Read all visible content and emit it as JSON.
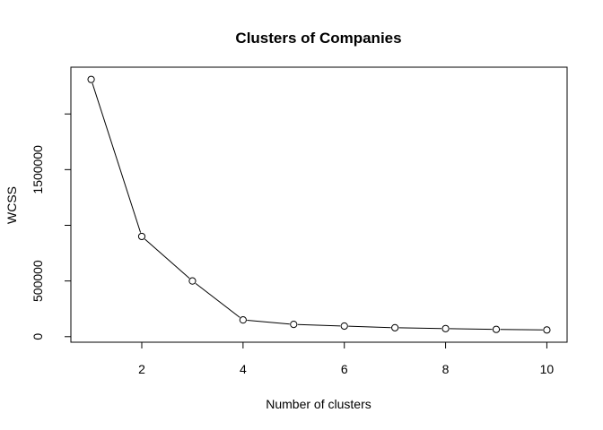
{
  "chart_data": {
    "type": "line",
    "title": "Clusters of Companies",
    "xlabel": "Number of clusters",
    "ylabel": "WCSS",
    "x": [
      1,
      2,
      3,
      4,
      5,
      6,
      7,
      8,
      9,
      10
    ],
    "y": [
      2310000,
      900000,
      500000,
      150000,
      110000,
      95000,
      80000,
      72000,
      65000,
      60000
    ],
    "xlim": [
      0.6,
      10.4
    ],
    "ylim": [
      -50000,
      2420000
    ],
    "xticks": [
      2,
      4,
      6,
      8,
      10
    ],
    "xtick_labels": [
      "2",
      "4",
      "6",
      "8",
      "10"
    ],
    "yticks": [
      0,
      500000,
      1000000,
      1500000,
      2000000
    ],
    "ytick_labels": [
      "0",
      "500000",
      "",
      "1500000",
      ""
    ],
    "marker": "open-circle",
    "grid": false,
    "legend": "none",
    "line_color": "#000000"
  }
}
